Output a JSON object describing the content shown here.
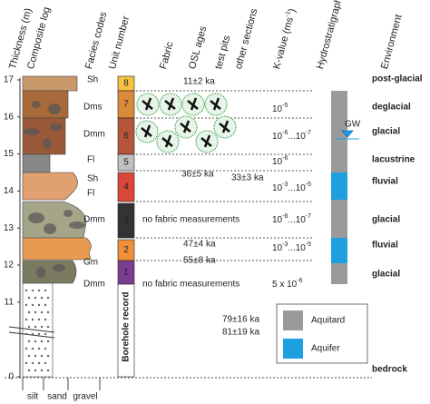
{
  "headers": {
    "thickness": "Thickness (m)",
    "composite_log": "Composite log",
    "facies_codes": "Facies codes",
    "unit_number": "Unit number",
    "fabric": "Fabric",
    "osl_ages": "OSL ages",
    "test_pits": "test pits",
    "other_sections": "other sections",
    "k_value": [
      {
        "t": "K-value (ms"
      },
      {
        "t": "-1",
        "sup": true
      },
      {
        "t": ")"
      }
    ],
    "hydrostratigraphy": "Hydrostratigraphy",
    "environment": "Environment"
  },
  "thickness_ticks": [
    17,
    16,
    15,
    14,
    13,
    12,
    11,
    0
  ],
  "facies_codes": [
    "Sh",
    "Dms",
    "Dmm",
    "Fl",
    "Sh",
    "Fl",
    "Dmm",
    "Gm",
    "Dmm"
  ],
  "units": [
    8,
    7,
    6,
    5,
    4,
    3,
    2,
    1
  ],
  "fabric_notes": [
    "no fabric measurements",
    "no fabric measurements"
  ],
  "osl_ages": [
    "11±2 ka",
    "36±5 ka",
    "33±3 ka",
    "47±4 ka",
    "55±8 ka",
    "79±16 ka",
    "81±19 ka"
  ],
  "k_values": [
    [
      {
        "t": "10"
      },
      {
        "t": "-5",
        "sup": true
      }
    ],
    [
      {
        "t": "10"
      },
      {
        "t": "-6",
        "sup": true
      },
      {
        "t": "...10"
      },
      {
        "t": "-7",
        "sup": true
      }
    ],
    [
      {
        "t": "10"
      },
      {
        "t": "-6",
        "sup": true
      }
    ],
    [
      {
        "t": "10"
      },
      {
        "t": "-3",
        "sup": true
      },
      {
        "t": "...10"
      },
      {
        "t": "-5",
        "sup": true
      }
    ],
    [
      {
        "t": "10"
      },
      {
        "t": "-6",
        "sup": true
      },
      {
        "t": "...10"
      },
      {
        "t": "-7",
        "sup": true
      }
    ],
    [
      {
        "t": "10"
      },
      {
        "t": "-3",
        "sup": true
      },
      {
        "t": "...10"
      },
      {
        "t": "-5",
        "sup": true
      }
    ],
    [
      {
        "t": "5 x 10"
      },
      {
        "t": "-6",
        "sup": true
      }
    ]
  ],
  "environments": [
    "post-glacial",
    "deglacial",
    "glacial",
    "lacustrine",
    "fluvial",
    "glacial",
    "fluvial",
    "glacial",
    "bedrock"
  ],
  "gw_label": "GW",
  "borehole_record": "Borehole record",
  "grain_size": [
    "silt",
    "sand",
    "gravel"
  ],
  "legend": [
    "Aquitard",
    "Aquifer"
  ]
}
